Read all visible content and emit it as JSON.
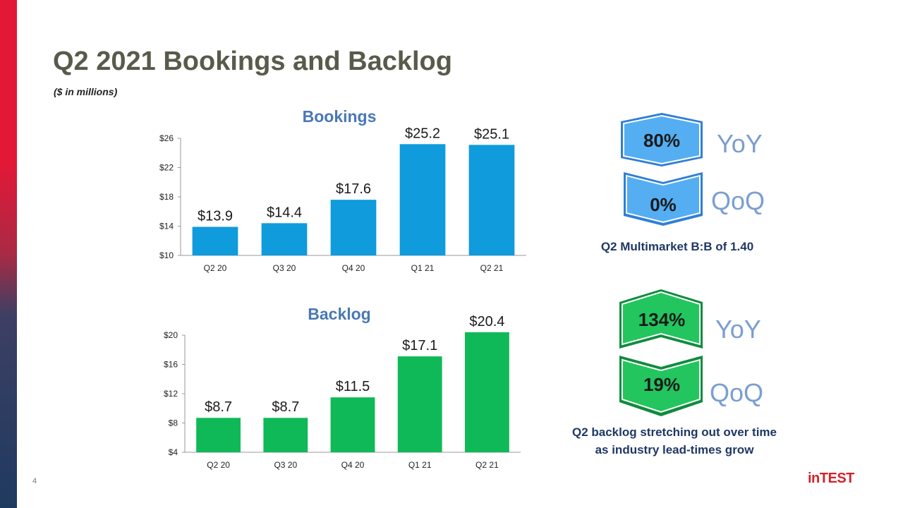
{
  "title": "Q2 2021 Bookings and Backlog",
  "subtitle": "($ in millions)",
  "page_number": "4",
  "logo_text": "inTEST",
  "colors": {
    "bookings_bar": "#0f9bdc",
    "backlog_bar": "#10b957",
    "title": "#595a4c",
    "chart_title": "#4a78b5",
    "metric_label": "#7b9ed1",
    "caption": "#1f3864",
    "logo": "#d2232a"
  },
  "chart_data": [
    {
      "type": "bar",
      "title": "Bookings",
      "categories": [
        "Q2 20",
        "Q3 20",
        "Q4 20",
        "Q1 21",
        "Q2 21"
      ],
      "values": [
        13.9,
        14.4,
        17.6,
        25.2,
        25.1
      ],
      "data_labels": [
        "$13.9",
        "$14.4",
        "$17.6",
        "$25.2",
        "$25.1"
      ],
      "yticks": [
        "$10",
        "$14",
        "$18",
        "$22",
        "$26"
      ],
      "ylim": [
        10,
        26
      ],
      "grid": false,
      "xlabel": "",
      "ylabel": ""
    },
    {
      "type": "bar",
      "title": "Backlog",
      "categories": [
        "Q2 20",
        "Q3 20",
        "Q4 20",
        "Q1 21",
        "Q2 21"
      ],
      "values": [
        8.7,
        8.7,
        11.5,
        17.1,
        20.4
      ],
      "data_labels": [
        "$8.7",
        "$8.7",
        "$11.5",
        "$17.1",
        "$20.4"
      ],
      "yticks": [
        "$4",
        "$8",
        "$12",
        "$16",
        "$20"
      ],
      "ylim": [
        4,
        20
      ],
      "grid": false,
      "xlabel": "",
      "ylabel": ""
    }
  ],
  "bookings_metrics": {
    "yoy_value": "80%",
    "yoy_label": "YoY",
    "qoq_value": "0%",
    "qoq_label": "QoQ",
    "caption": "Q2 Multimarket B:B of 1.40"
  },
  "backlog_metrics": {
    "yoy_value": "134%",
    "yoy_label": "YoY",
    "qoq_value": "19%",
    "qoq_label": "QoQ",
    "caption_line1": "Q2 backlog stretching out over time",
    "caption_line2": "as industry lead-times grow"
  }
}
